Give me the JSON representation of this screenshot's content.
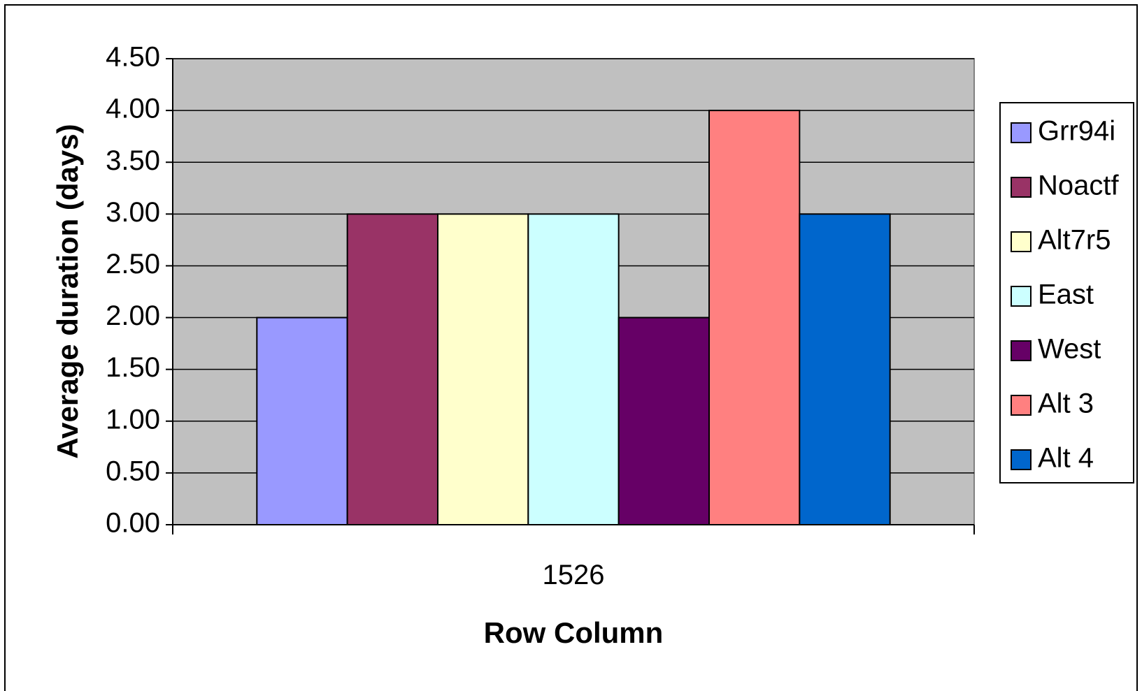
{
  "chart_data": {
    "type": "bar",
    "title": "",
    "xlabel": "Row Column",
    "ylabel": "Average duration (days)",
    "categories": [
      "1526"
    ],
    "ylim": [
      0,
      4.5
    ],
    "y_ticks": [
      "0.00",
      "0.50",
      "1.00",
      "1.50",
      "2.00",
      "2.50",
      "3.00",
      "3.50",
      "4.00",
      "4.50"
    ],
    "grid": true,
    "legend_position": "right",
    "plot_background": "#c0c0c0",
    "series": [
      {
        "name": "Grr94i",
        "values": [
          2.0
        ],
        "color": "#9999ff"
      },
      {
        "name": "Noactf",
        "values": [
          3.0
        ],
        "color": "#993366"
      },
      {
        "name": "Alt7r5",
        "values": [
          3.0
        ],
        "color": "#ffffcc"
      },
      {
        "name": "East",
        "values": [
          3.0
        ],
        "color": "#ccffff"
      },
      {
        "name": "West",
        "values": [
          2.0
        ],
        "color": "#660066"
      },
      {
        "name": "Alt 3",
        "values": [
          4.0
        ],
        "color": "#ff8080"
      },
      {
        "name": "Alt 4",
        "values": [
          3.0
        ],
        "color": "#0066cc"
      }
    ]
  }
}
